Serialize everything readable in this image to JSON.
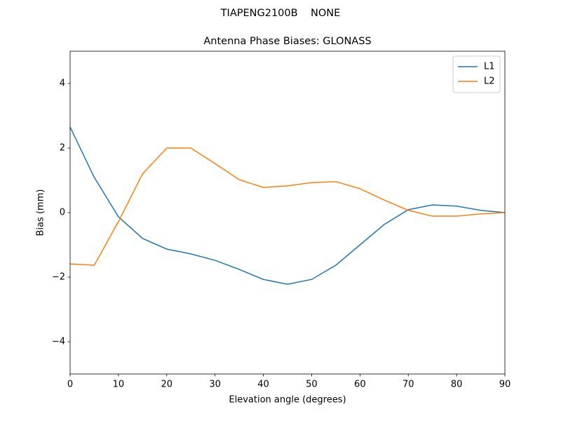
{
  "chart_data": {
    "type": "line",
    "suptitle": "TIAPENG2100B    NONE",
    "title": "Antenna Phase Biases: GLONASS",
    "xlabel": "Elevation angle (degrees)",
    "ylabel": "Bias (mm)",
    "x": [
      0,
      5,
      10,
      15,
      20,
      25,
      30,
      35,
      40,
      45,
      50,
      55,
      60,
      65,
      70,
      75,
      80,
      85,
      90
    ],
    "series": [
      {
        "name": "L1",
        "color": "#1f77b4",
        "values": [
          2.65,
          1.09,
          -0.13,
          -0.8,
          -1.13,
          -1.28,
          -1.48,
          -1.76,
          -2.07,
          -2.22,
          -2.07,
          -1.63,
          -1.0,
          -0.37,
          0.09,
          0.24,
          0.2,
          0.07,
          0
        ]
      },
      {
        "name": "L2",
        "color": "#ff7f0e",
        "values": [
          -1.59,
          -1.63,
          -0.28,
          1.2,
          2.0,
          2.0,
          1.52,
          1.02,
          0.78,
          0.83,
          0.93,
          0.96,
          0.74,
          0.39,
          0.07,
          -0.11,
          -0.11,
          -0.04,
          0
        ]
      }
    ],
    "xlim": [
      0,
      90
    ],
    "xticks": [
      0,
      10,
      20,
      30,
      40,
      50,
      60,
      70,
      80,
      90
    ],
    "ylim": [
      -5,
      5
    ],
    "yticks": [
      {
        "value": -4,
        "label": "−4"
      },
      {
        "value": -2,
        "label": "−2"
      },
      0,
      2,
      4
    ],
    "grid": false,
    "legend": "upper right"
  }
}
